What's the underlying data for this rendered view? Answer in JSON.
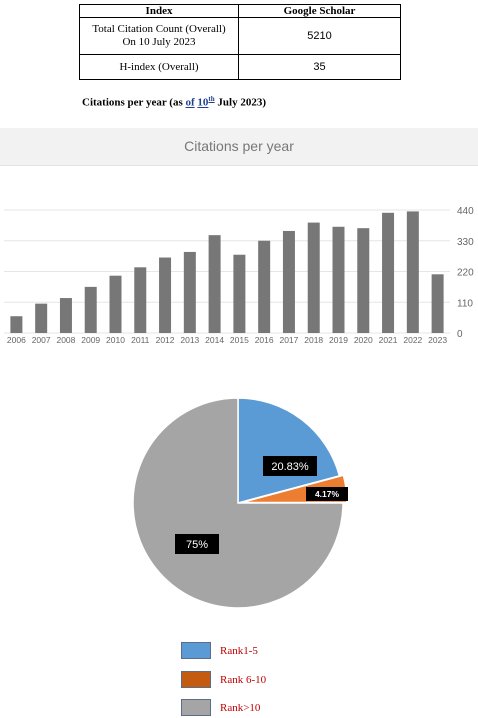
{
  "table": {
    "headers": [
      "Index",
      "Google Scholar"
    ],
    "rows": [
      {
        "label_line1": "Total Citation Count (Overall)",
        "label_line2": "On 10 July 2023",
        "value": "5210"
      },
      {
        "label_line1": "H-index (Overall)",
        "label_line2": "",
        "value": "35"
      }
    ]
  },
  "caption": {
    "prefix": "Citations per year (as ",
    "underlined_of": "of",
    "underlined_num": "10",
    "sup": "th",
    "suffix": " July 2023)"
  },
  "chart_title": "Citations per year",
  "chart_data": [
    {
      "type": "bar",
      "title": "Citations per year",
      "categories": [
        "2006",
        "2007",
        "2008",
        "2009",
        "2010",
        "2011",
        "2012",
        "2013",
        "2014",
        "2015",
        "2016",
        "2017",
        "2018",
        "2019",
        "2020",
        "2021",
        "2022",
        "2023"
      ],
      "values": [
        60,
        105,
        125,
        165,
        205,
        235,
        270,
        290,
        350,
        280,
        330,
        365,
        395,
        380,
        375,
        430,
        435,
        210
      ],
      "ylim": [
        0,
        440
      ],
      "yticks": [
        0,
        110,
        220,
        330,
        440
      ],
      "ytick_labels": [
        "0",
        "110",
        "220",
        "330",
        "440"
      ],
      "y_axis_side": "right",
      "grid": true,
      "bar_color": "#777777"
    },
    {
      "type": "pie",
      "slices": [
        {
          "label": "Rank1-5",
          "value": 20.83,
          "display": "20.83%",
          "color": "#5b9bd5"
        },
        {
          "label": "Rank 6-10",
          "value": 4.17,
          "display": "4.17%",
          "color": "#ed7d31"
        },
        {
          "label": "Rank>10",
          "value": 75,
          "display": "75%",
          "color": "#a5a5a5"
        }
      ],
      "legend_placement": "bottom",
      "legend_colors": [
        "#5b9bd5",
        "#c55a11",
        "#a5a5a5"
      ]
    }
  ]
}
